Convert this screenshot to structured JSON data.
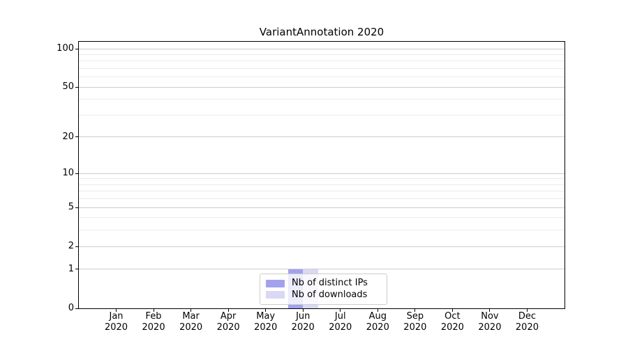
{
  "chart_data": {
    "type": "bar",
    "title": "VariantAnnotation 2020",
    "categories": [
      "Jan 2020",
      "Feb 2020",
      "Mar 2020",
      "Apr 2020",
      "May 2020",
      "Jun 2020",
      "Jul 2020",
      "Aug 2020",
      "Sep 2020",
      "Oct 2020",
      "Nov 2020",
      "Dec 2020"
    ],
    "series": [
      {
        "name": "Nb of distinct IPs",
        "color": "#a2a2ec",
        "values": [
          0,
          0,
          0,
          0,
          0,
          1,
          0,
          0,
          0,
          0,
          0,
          0
        ]
      },
      {
        "name": "Nb of downloads",
        "color": "#d9d9f4",
        "values": [
          0,
          0,
          0,
          0,
          0,
          1,
          0,
          0,
          0,
          0,
          0,
          0
        ]
      }
    ],
    "xlabel": "",
    "ylabel": "",
    "y_scale": "log1p",
    "ylim": [
      0,
      113
    ],
    "y_major_ticks": [
      0,
      1,
      2,
      5,
      10,
      20,
      50,
      100
    ],
    "y_minor_ticks": [
      3,
      4,
      6,
      7,
      8,
      9,
      30,
      40,
      60,
      70,
      80,
      90
    ],
    "grid": "horizontal",
    "legend_position": "lower center",
    "bar_width_fraction": 0.4,
    "colors": {
      "axis": "#000000",
      "grid_major": "#cccccc",
      "grid_minor": "#ebebeb",
      "legend_border": "#cccccc",
      "text": "#000000"
    }
  }
}
